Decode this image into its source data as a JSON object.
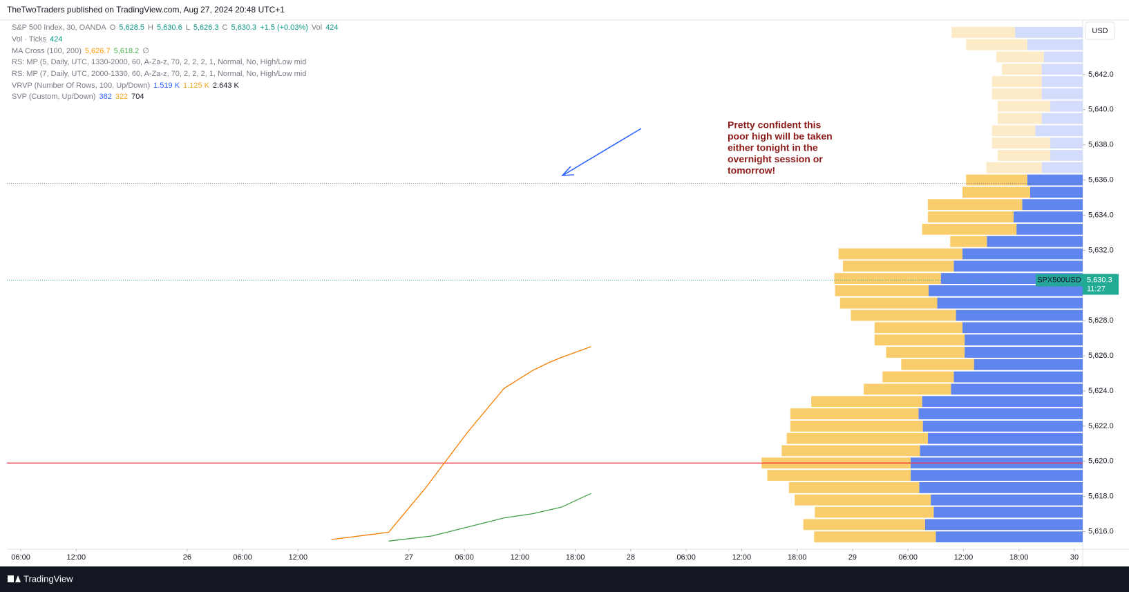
{
  "header": {
    "text": "TheTwoTraders published on TradingView.com, Aug 27, 2024 20:48 UTC+1"
  },
  "footer": {
    "brand": "TradingView"
  },
  "chart_data": {
    "type": "line",
    "currency_button": "USD",
    "legend_rows": [
      [
        {
          "text": "S&P 500 Index, 30, OANDA",
          "color": "#787b86"
        },
        {
          "text": "O",
          "color": "#787b86"
        },
        {
          "text": "5,628.5",
          "color": "#089981"
        },
        {
          "text": "H",
          "color": "#787b86"
        },
        {
          "text": "5,630.6",
          "color": "#089981"
        },
        {
          "text": "L",
          "color": "#787b86"
        },
        {
          "text": "5,626.3",
          "color": "#089981"
        },
        {
          "text": "C",
          "color": "#787b86"
        },
        {
          "text": "5,630.3",
          "color": "#089981"
        },
        {
          "text": "+1.5 (+0.03%)",
          "color": "#089981"
        },
        {
          "text": "Vol",
          "color": "#787b86"
        },
        {
          "text": "424",
          "color": "#089981"
        }
      ],
      [
        {
          "text": "Vol · Ticks",
          "color": "#787b86"
        },
        {
          "text": "424",
          "color": "#089981"
        }
      ],
      [
        {
          "text": "MA Cross (100, 200)",
          "color": "#787b86"
        },
        {
          "text": "5,626.7",
          "color": "#ff9800"
        },
        {
          "text": "5,618.2",
          "color": "#4caf50"
        },
        {
          "text": "∅",
          "color": "#787b86"
        }
      ],
      [
        {
          "text": "RS: MP (5, Daily, UTC, 1330-2000, 60, A-Za-z, 70, 2, 2, 2, 1, Normal, No, High/Low mid",
          "color": "#787b86"
        }
      ],
      [
        {
          "text": "RS: MP (7, Daily, UTC, 2000-1330, 60, A-Za-z, 70, 2, 2, 2, 1, Normal, No, High/Low mid",
          "color": "#787b86"
        }
      ],
      [
        {
          "text": "VRVP (Number Of Rows, 100, Up/Down)",
          "color": "#787b86"
        },
        {
          "text": "1.519 K",
          "color": "#2962ff"
        },
        {
          "text": "1.125 K",
          "color": "#f5a623"
        },
        {
          "text": "2.643 K",
          "color": "#131722"
        }
      ],
      [
        {
          "text": "SVP (Custom, Up/Down)",
          "color": "#787b86"
        },
        {
          "text": "382",
          "color": "#2962ff"
        },
        {
          "text": "322",
          "color": "#f5a623"
        },
        {
          "text": "704",
          "color": "#131722"
        }
      ]
    ],
    "annotation": [
      "Pretty confident this",
      "poor high will be taken",
      "either tonight in the",
      "overnight session or",
      "tomorrow!"
    ],
    "xlim": [
      4.5,
      120.9
    ],
    "xticks": [
      {
        "value": 6,
        "label": "06:00"
      },
      {
        "value": 12,
        "label": "12:00"
      },
      {
        "value": 24,
        "label": "26"
      },
      {
        "value": 30,
        "label": "06:00"
      },
      {
        "value": 36,
        "label": "12:00"
      },
      {
        "value": 48,
        "label": "27"
      },
      {
        "value": 54,
        "label": "06:00"
      },
      {
        "value": 60,
        "label": "12:00"
      },
      {
        "value": 66,
        "label": "18:00"
      },
      {
        "value": 72,
        "label": "28"
      },
      {
        "value": 78,
        "label": "06:00"
      },
      {
        "value": 84,
        "label": "12:00"
      },
      {
        "value": 90,
        "label": "18:00"
      },
      {
        "value": 96,
        "label": "29"
      },
      {
        "value": 102,
        "label": "06:00"
      },
      {
        "value": 108,
        "label": "12:00"
      },
      {
        "value": 114,
        "label": "18:00"
      },
      {
        "value": 120,
        "label": "30"
      }
    ],
    "ylim": [
      5615.0,
      5645.1
    ],
    "yticks": [
      {
        "value": 5616,
        "label": "5,616.0"
      },
      {
        "value": 5618,
        "label": "5,618.0"
      },
      {
        "value": 5620,
        "label": "5,620.0"
      },
      {
        "value": 5622,
        "label": "5,622.0"
      },
      {
        "value": 5624,
        "label": "5,624.0"
      },
      {
        "value": 5626,
        "label": "5,626.0"
      },
      {
        "value": 5628,
        "label": "5,628.0"
      },
      {
        "value": 5630,
        "label": "5,630.0"
      },
      {
        "value": 5632,
        "label": "5,632.0"
      },
      {
        "value": 5634,
        "label": "5,634.0"
      },
      {
        "value": 5636,
        "label": "5,636.0"
      },
      {
        "value": 5638,
        "label": "5,638.0"
      },
      {
        "value": 5640,
        "label": "5,640.0"
      },
      {
        "value": 5642,
        "label": "5,642.0"
      }
    ],
    "grid": false,
    "series": [
      {
        "color": "#f57c00",
        "x": [
          39.6,
          45.8,
          49.7,
          54.4,
          58.3,
          61.4,
          63.0,
          64.5,
          67.7
        ],
        "values": [
          5615.55,
          5615.96,
          5618.42,
          5621.69,
          5624.15,
          5625.17,
          5625.58,
          5625.91,
          5626.52
        ]
      },
      {
        "color": "#43a047",
        "x": [
          45.8,
          50.5,
          55.2,
          58.3,
          61.4,
          64.5,
          67.7
        ],
        "values": [
          5615.46,
          5615.75,
          5616.37,
          5616.78,
          5617.02,
          5617.39,
          5618.17
        ]
      }
    ],
    "levels": [
      {
        "value": 5619.9,
        "color": "#f23645",
        "dashed": false
      },
      {
        "value": 5630.3,
        "color": "#26a69a",
        "dashed": true
      },
      {
        "value": 5635.8,
        "color": "#787b86",
        "dashed": true
      }
    ],
    "last_price": {
      "value": 5630.3,
      "label": "5,630.3",
      "symbol": "SPX500USD",
      "countdown": "11:27"
    },
    "volume_profile": {
      "up_color": "#f9cd6b",
      "down_color": "#5f86ef",
      "faded_up_color": "#fcebc6",
      "faded_down_color": "#d3ddfb",
      "value_area_high": 5636.3,
      "prices": [
        5644.4,
        5643.7,
        5643.0,
        5642.3,
        5641.6,
        5640.9,
        5640.2,
        5639.5,
        5638.8,
        5638.1,
        5637.4,
        5636.7,
        5636.0,
        5635.3,
        5634.6,
        5633.9,
        5633.2,
        5632.5,
        5631.8,
        5631.1,
        5630.4,
        5629.7,
        5629.0,
        5628.3,
        5627.6,
        5626.9,
        5626.2,
        5625.5,
        5624.8,
        5624.1,
        5623.4,
        5622.7,
        5622.0,
        5621.3,
        5620.6,
        5619.9,
        5619.2,
        5618.5,
        5617.8,
        5617.1,
        5616.4,
        5615.7
      ],
      "up": [
        88,
        85,
        66,
        55,
        69,
        69,
        73,
        61,
        60,
        81,
        73,
        77,
        85,
        94,
        131,
        119,
        131,
        51,
        172,
        154,
        148,
        130,
        135,
        146,
        122,
        125,
        109,
        101,
        99,
        121,
        154,
        178,
        184,
        196,
        192,
        207,
        199,
        181,
        189,
        165,
        169,
        169
      ],
      "down": [
        94,
        77,
        54,
        57,
        57,
        57,
        45,
        57,
        66,
        45,
        45,
        57,
        77,
        73,
        84,
        96,
        92,
        133,
        167,
        179,
        197,
        214,
        202,
        176,
        167,
        164,
        164,
        151,
        179,
        183,
        223,
        228,
        222,
        215,
        226,
        239,
        239,
        227,
        211,
        207,
        219,
        204
      ]
    }
  }
}
